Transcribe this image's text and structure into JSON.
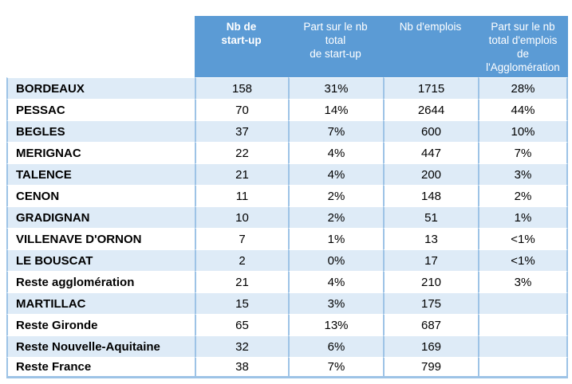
{
  "colors": {
    "header_bg": "#5B9BD5",
    "header_text": "#FFFFFF",
    "band_row_bg": "#DEEBF7",
    "plain_row_bg": "#FFFFFF",
    "grid_line": "#9DC3E6",
    "body_text": "#000000"
  },
  "table": {
    "header_display": [
      "",
      "Nb de\nstart-up",
      "Part sur le nb\ntotal\nde start-up",
      "Nb d'emplois",
      "Part sur le nb\ntotal d'emplois\nde\nl'Agglomération"
    ]
  },
  "chart_data": {
    "type": "table",
    "title": "",
    "columns": [
      "",
      "Nb de start-up",
      "Part sur le nb total de start-up",
      "Nb d'emplois",
      "Part sur le nb total d'emplois de l'Agglomération"
    ],
    "rows": [
      [
        "BORDEAUX",
        "158",
        "31%",
        "1715",
        "28%"
      ],
      [
        "PESSAC",
        "70",
        "14%",
        "2644",
        "44%"
      ],
      [
        "BEGLES",
        "37",
        "7%",
        "600",
        "10%"
      ],
      [
        "MERIGNAC",
        "22",
        "4%",
        "447",
        "7%"
      ],
      [
        "TALENCE",
        "21",
        "4%",
        "200",
        "3%"
      ],
      [
        "CENON",
        "11",
        "2%",
        "148",
        "2%"
      ],
      [
        "GRADIGNAN",
        "10",
        "2%",
        "51",
        "1%"
      ],
      [
        "VILLENAVE D'ORNON",
        "7",
        "1%",
        "13",
        "<1%"
      ],
      [
        "LE BOUSCAT",
        "2",
        "0%",
        "17",
        "<1%"
      ],
      [
        "Reste agglomération",
        "21",
        "4%",
        "210",
        "3%"
      ],
      [
        "MARTILLAC",
        "15",
        "3%",
        "175",
        ""
      ],
      [
        "Reste Gironde",
        "65",
        "13%",
        "687",
        ""
      ],
      [
        "Reste Nouvelle-Aquitaine",
        "32",
        "6%",
        "169",
        ""
      ],
      [
        "Reste France",
        "38",
        "7%",
        "799",
        ""
      ]
    ]
  }
}
